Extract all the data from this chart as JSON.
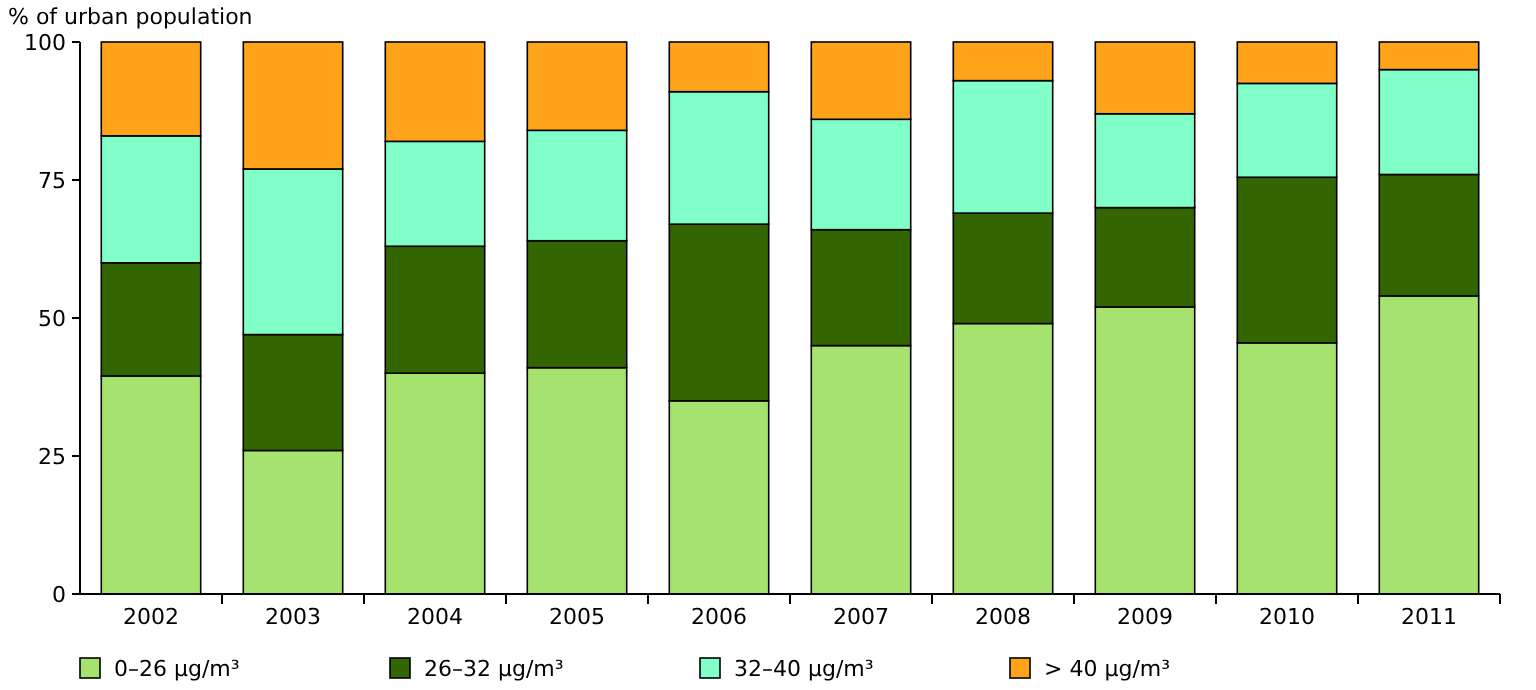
{
  "chart_data": {
    "type": "bar",
    "stacked": true,
    "ylabel": "% of urban population",
    "categories": [
      "2002",
      "2003",
      "2004",
      "2005",
      "2006",
      "2007",
      "2008",
      "2009",
      "2010",
      "2011"
    ],
    "series": [
      {
        "name": "0–26 µg/m³",
        "color": "#a6e36e",
        "values": [
          39.5,
          26,
          40,
          41,
          35,
          45,
          49,
          52,
          45.5,
          54
        ]
      },
      {
        "name": "26–32 µg/m³",
        "color": "#336600",
        "values": [
          20.5,
          21,
          23,
          23,
          32,
          21,
          20,
          18,
          30,
          22
        ]
      },
      {
        "name": "32–40 µg/m³",
        "color": "#80ffc8",
        "values": [
          23,
          30,
          19,
          20,
          24,
          20,
          24,
          17,
          17,
          19
        ]
      },
      {
        "name": "> 40 µg/m³",
        "color": "#ffa31a",
        "values": [
          17,
          23,
          18,
          16,
          9,
          14,
          7,
          13,
          7.5,
          5
        ]
      }
    ],
    "ylim": [
      0,
      100
    ],
    "yticks": [
      0,
      25,
      50,
      75,
      100
    ],
    "legend": "bottom"
  }
}
